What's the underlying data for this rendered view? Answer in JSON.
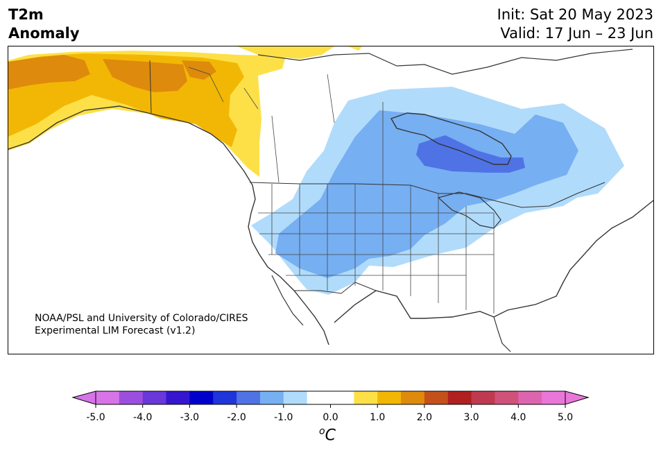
{
  "title": {
    "line1": "T2m",
    "line2": "Anomaly"
  },
  "run": {
    "init": "Init: Sat 20 May 2023",
    "valid": "Valid: 17 Jun – 23 Jun"
  },
  "credit": {
    "line1": "NOAA/PSL and University of Colorado/CIRES",
    "line2": "Experimental LIM Forecast (v1.2)"
  },
  "colorbar": {
    "bins": [
      "#d774e8",
      "#9b4fdf",
      "#6a37d9",
      "#3616cf",
      "#0000cd",
      "#2035d9",
      "#4f73e5",
      "#76aff2",
      "#b1dbfb",
      "#ffffff",
      "#ffffff",
      "#fde047",
      "#f2b705",
      "#de8a0c",
      "#c4511a",
      "#b02020",
      "#bf3a50",
      "#d0527a",
      "#dd65b0",
      "#e877d8"
    ],
    "under_color": "#d774e8",
    "over_color": "#e877d8",
    "tick_labels": [
      "-5.0",
      "-4.0",
      "-3.0",
      "-2.0",
      "-1.0",
      "0.0",
      "1.0",
      "2.0",
      "3.0",
      "4.0",
      "5.0"
    ],
    "unit_main": "C",
    "unit_sup": "o"
  }
}
